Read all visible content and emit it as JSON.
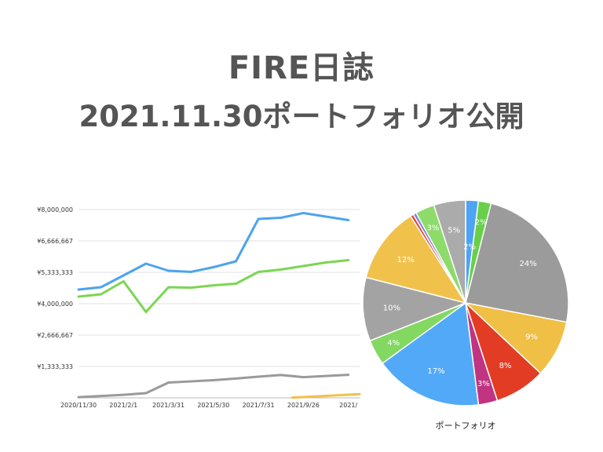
{
  "title": {
    "line1": "FIRE日誌",
    "line2": "2021.11.30ポートフォリオ公開"
  },
  "chart_data": [
    {
      "type": "line",
      "title": "",
      "xlabel": "",
      "ylabel": "",
      "ylim": [
        0,
        8000000
      ],
      "y_ticks": [
        {
          "value": 1333333,
          "label": "¥1,333,333"
        },
        {
          "value": 2666667,
          "label": "¥2,666,667"
        },
        {
          "value": 4000000,
          "label": "¥4,000,000"
        },
        {
          "value": 5333333,
          "label": "¥5,333,333"
        },
        {
          "value": 6666667,
          "label": "¥6,666,667"
        },
        {
          "value": 8000000,
          "label": "¥8,000,000"
        }
      ],
      "x_tick_labels": [
        "2020/11/30",
        "2021/2/1",
        "2021/3/31",
        "2021/5/30",
        "2021/7/31",
        "2021/9/26",
        "2021/"
      ],
      "grid": true,
      "legend": "none",
      "series": [
        {
          "color": "#4da3ee",
          "points": [
            [
              0,
              4600000
            ],
            [
              1,
              4700000
            ],
            [
              2,
              5200000
            ],
            [
              3,
              5700000
            ],
            [
              4,
              5400000
            ],
            [
              5,
              5350000
            ],
            [
              6,
              5550000
            ],
            [
              7,
              5800000
            ],
            [
              8,
              7600000
            ],
            [
              9,
              7650000
            ],
            [
              10,
              7850000
            ],
            [
              11,
              7700000
            ],
            [
              12,
              7550000
            ]
          ]
        },
        {
          "color": "#7bd653",
          "points": [
            [
              0,
              4300000
            ],
            [
              1,
              4400000
            ],
            [
              2,
              4950000
            ],
            [
              3,
              3650000
            ],
            [
              4,
              4700000
            ],
            [
              5,
              4680000
            ],
            [
              6,
              4780000
            ],
            [
              7,
              4850000
            ],
            [
              8,
              5350000
            ],
            [
              9,
              5450000
            ],
            [
              10,
              5600000
            ],
            [
              11,
              5750000
            ],
            [
              12,
              5850000
            ]
          ]
        },
        {
          "color": "#9a9a9a",
          "points": [
            [
              0,
              30000
            ],
            [
              1,
              80000
            ],
            [
              2,
              130000
            ],
            [
              3,
              200000
            ],
            [
              4,
              650000
            ],
            [
              5,
              700000
            ],
            [
              6,
              750000
            ],
            [
              7,
              820000
            ],
            [
              8,
              900000
            ],
            [
              9,
              970000
            ],
            [
              10,
              880000
            ],
            [
              11,
              930000
            ],
            [
              12,
              980000
            ]
          ]
        },
        {
          "color": "#f2c04e",
          "points": [
            [
              9.5,
              10000
            ],
            [
              10.5,
              60000
            ],
            [
              11.5,
              110000
            ],
            [
              12.5,
              160000
            ]
          ]
        }
      ]
    },
    {
      "type": "pie",
      "title": "ポートフォリオ",
      "slices": [
        {
          "value": 2,
          "color": "#4da3f5",
          "label": ""
        },
        {
          "value": 2,
          "color": "#68cf4a",
          "label": "2%"
        },
        {
          "value": 24,
          "color": "#9b9b9b",
          "label": "24%"
        },
        {
          "value": 9,
          "color": "#f0bf45",
          "label": "9%"
        },
        {
          "value": 8,
          "color": "#e23c24",
          "label": "8%"
        },
        {
          "value": 3,
          "color": "#c13482",
          "label": "3%"
        },
        {
          "value": 17,
          "color": "#52a9f7",
          "label": "17%"
        },
        {
          "value": 4,
          "color": "#82d861",
          "label": "4%"
        },
        {
          "value": 10,
          "color": "#a3a3a3",
          "label": "10%"
        },
        {
          "value": 12,
          "color": "#f0c24c",
          "label": "12%"
        },
        {
          "value": 0.5,
          "color": "#e04a36",
          "label": ""
        },
        {
          "value": 0.5,
          "color": "#7b7fd8",
          "label": ""
        },
        {
          "value": 3,
          "color": "#8ddb6a",
          "label": "3%"
        },
        {
          "value": 5,
          "color": "#ababab",
          "label": "5%"
        }
      ],
      "extra_label": "2%"
    }
  ]
}
